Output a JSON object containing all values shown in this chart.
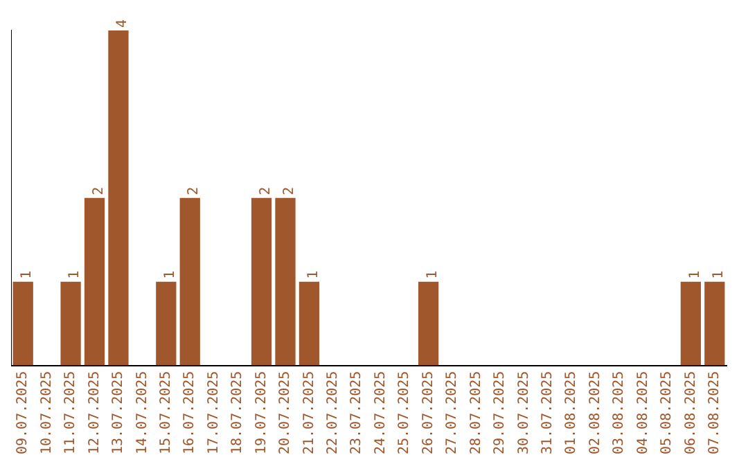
{
  "chart_data": {
    "type": "bar",
    "tick_labels": "x",
    "grid": false,
    "legend": false,
    "categories": [
      "09.07.2025",
      "10.07.2025",
      "11.07.2025",
      "12.07.2025",
      "13.07.2025",
      "14.07.2025",
      "15.07.2025",
      "16.07.2025",
      "17.07.2025",
      "18.07.2025",
      "19.07.2025",
      "20.07.2025",
      "21.07.2025",
      "22.07.2025",
      "23.07.2025",
      "24.07.2025",
      "25.07.2025",
      "26.07.2025",
      "27.07.2025",
      "28.07.2025",
      "29.07.2025",
      "30.07.2025",
      "31.07.2025",
      "01.08.2025",
      "02.08.2025",
      "03.08.2025",
      "04.08.2025",
      "05.08.2025",
      "06.08.2025",
      "07.08.2025"
    ],
    "values": [
      1,
      0,
      1,
      2,
      4,
      0,
      1,
      2,
      0,
      0,
      2,
      2,
      1,
      0,
      0,
      0,
      0,
      1,
      0,
      0,
      0,
      0,
      0,
      0,
      0,
      0,
      0,
      0,
      1,
      1
    ],
    "value_labels": [
      "1",
      null,
      "1",
      "2",
      "4",
      null,
      "1",
      "2",
      null,
      null,
      "2",
      "2",
      "1",
      null,
      null,
      null,
      null,
      "1",
      null,
      null,
      null,
      null,
      null,
      null,
      null,
      null,
      null,
      null,
      "1",
      "1"
    ],
    "color": "#a0572b"
  }
}
